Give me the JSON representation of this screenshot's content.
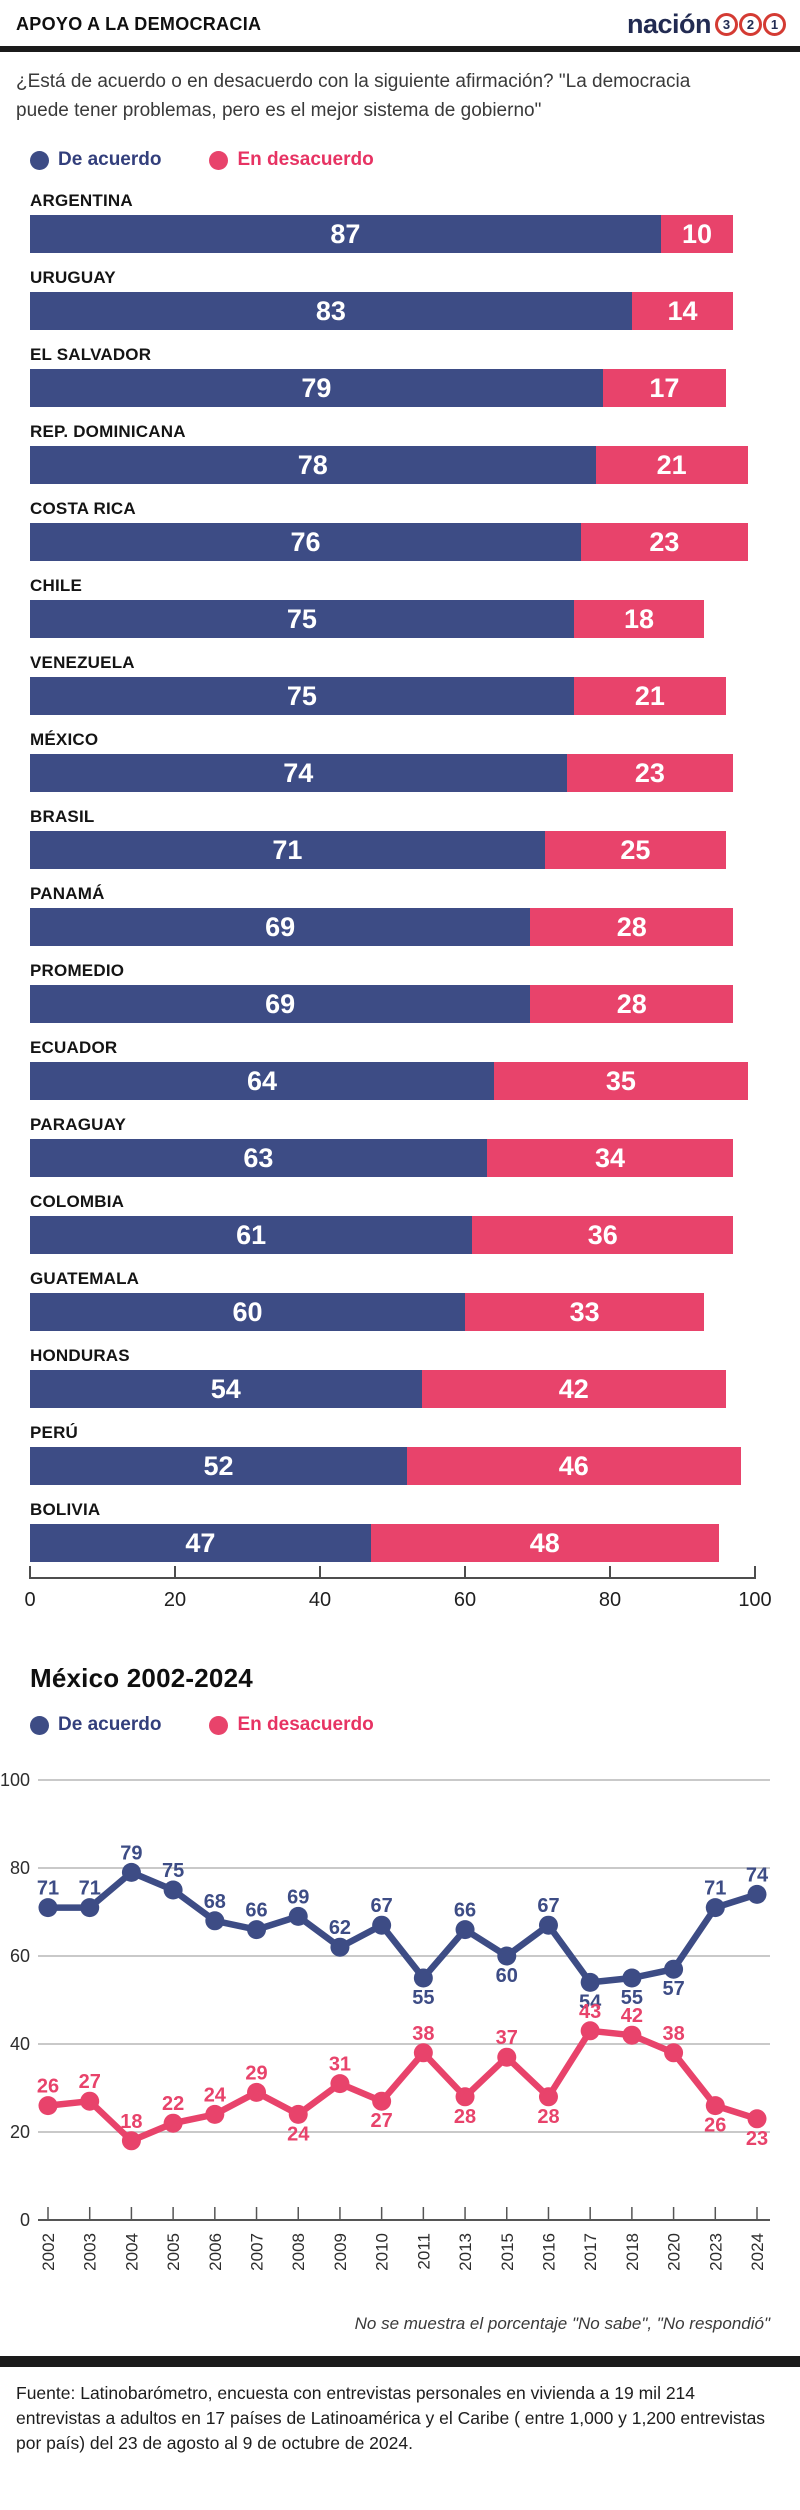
{
  "header": {
    "title": "APOYO A LA DEMOCRACIA",
    "brand": {
      "name": "nación",
      "digits": [
        "3",
        "2",
        "1"
      ]
    }
  },
  "question": "¿Está de acuerdo o en desacuerdo con la siguiente afirmación? \"La democracia puede tener problemas, pero es el mejor sistema de gobierno\"",
  "legend": {
    "agree": "De acuerdo",
    "disagree": "En desacuerdo"
  },
  "colors": {
    "agree": "#3d4c85",
    "disagree": "#e8436b",
    "agree_text": "#333f7c",
    "disagree_text": "#e73363",
    "rule": "#1b1b1b"
  },
  "chart_data": [
    {
      "type": "bar",
      "orientation": "horizontal",
      "stacked": true,
      "title": "",
      "categories": [
        "ARGENTINA",
        "URUGUAY",
        "EL SALVADOR",
        "REP. DOMINICANA",
        "COSTA RICA",
        "CHILE",
        "VENEZUELA",
        "MÉXICO",
        "BRASIL",
        "PANAMÁ",
        "PROMEDIO",
        "ECUADOR",
        "PARAGUAY",
        "COLOMBIA",
        "GUATEMALA",
        "HONDURAS",
        "PERÚ",
        "BOLIVIA"
      ],
      "series": [
        {
          "name": "De acuerdo",
          "values": [
            87,
            83,
            79,
            78,
            76,
            75,
            75,
            74,
            71,
            69,
            69,
            64,
            63,
            61,
            60,
            54,
            52,
            47
          ]
        },
        {
          "name": "En desacuerdo",
          "values": [
            10,
            14,
            17,
            21,
            23,
            18,
            21,
            23,
            25,
            28,
            28,
            35,
            34,
            36,
            33,
            42,
            46,
            48
          ]
        }
      ],
      "xlim": [
        0,
        100
      ],
      "x_ticks": [
        0,
        20,
        40,
        60,
        80,
        100
      ],
      "legend_position": "top"
    },
    {
      "type": "line",
      "title": "México 2002-2024",
      "x": [
        "2002",
        "2003",
        "2004",
        "2005",
        "2006",
        "2007",
        "2008",
        "2009",
        "2010",
        "2011",
        "2013",
        "2015",
        "2016",
        "2017",
        "2018",
        "2020",
        "2023",
        "2024"
      ],
      "series": [
        {
          "name": "De acuerdo",
          "values": [
            71,
            71,
            79,
            75,
            68,
            66,
            69,
            62,
            67,
            55,
            66,
            60,
            67,
            54,
            55,
            57,
            71,
            74
          ],
          "label_pos": [
            "a",
            "a",
            "a",
            "a",
            "a",
            "a",
            "a",
            "a",
            "a",
            "b",
            "a",
            "b",
            "a",
            "b",
            "b",
            "b",
            "a",
            "a"
          ]
        },
        {
          "name": "En desacuerdo",
          "values": [
            26,
            27,
            18,
            22,
            24,
            29,
            24,
            31,
            27,
            38,
            28,
            37,
            28,
            43,
            42,
            38,
            26,
            23
          ],
          "label_pos": [
            "a",
            "a",
            "a",
            "a",
            "a",
            "a",
            "b",
            "a",
            "b",
            "a",
            "b",
            "a",
            "b",
            "a",
            "a",
            "a",
            "b",
            "b"
          ]
        }
      ],
      "ylim": [
        0,
        100
      ],
      "y_ticks": [
        100,
        80,
        60,
        40,
        20,
        0
      ],
      "grid": true,
      "legend_position": "top"
    }
  ],
  "note": "No se muestra el porcentaje \"No sabe\", \"No respondió\"",
  "source": "Fuente: Latinobarómetro, encuesta con entrevistas personales en vivienda a 19 mil 214 entrevistas a adultos en 17 países de Latinoamérica y el Caribe ( entre 1,000 y 1,200 entrevistas por país) del 23 de agosto al 9 de octubre de 2024."
}
